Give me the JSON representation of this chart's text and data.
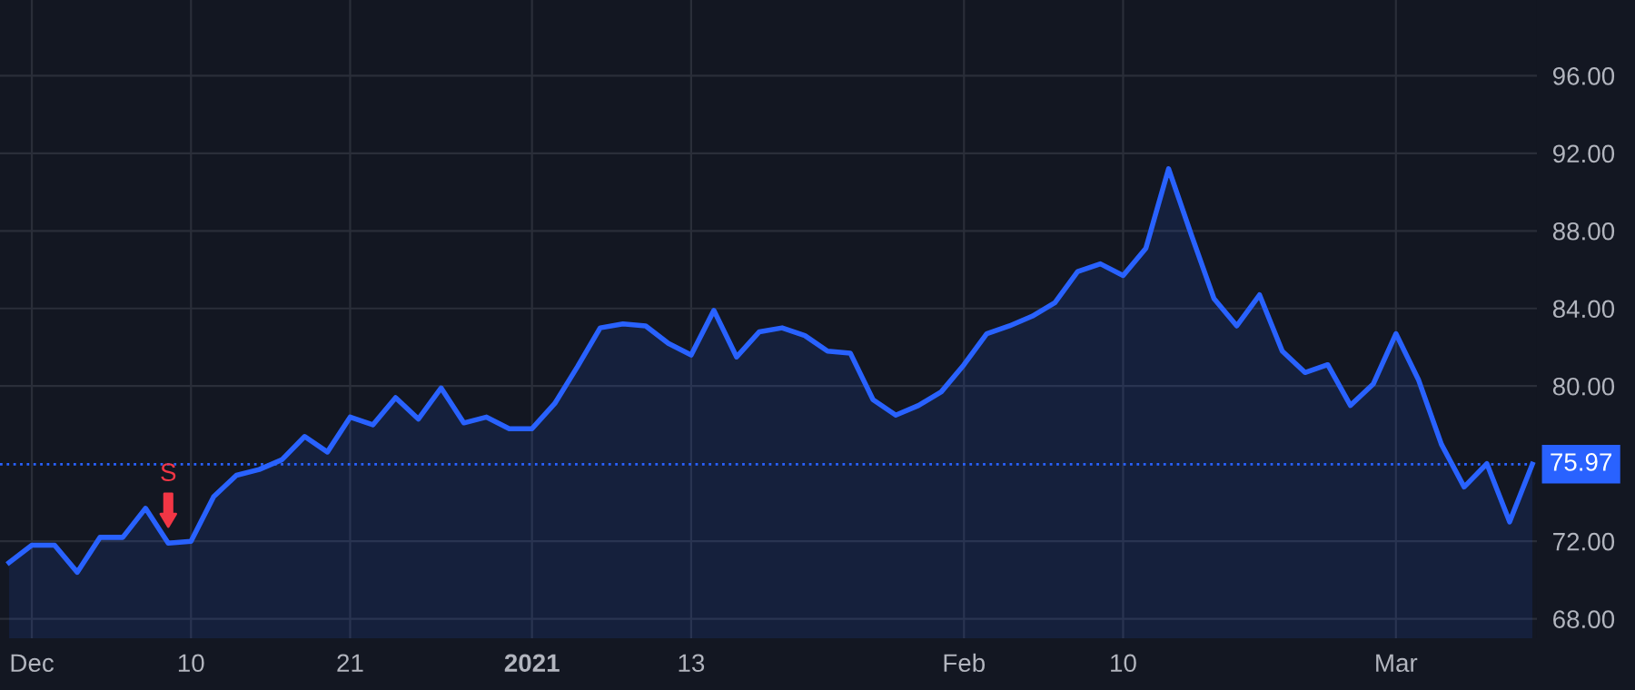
{
  "chart_data": {
    "type": "area",
    "categories": [
      null,
      "Dec",
      null,
      null,
      null,
      null,
      null,
      null,
      "10",
      null,
      null,
      null,
      null,
      null,
      null,
      "21",
      null,
      null,
      null,
      null,
      null,
      null,
      null,
      "2021",
      null,
      null,
      null,
      null,
      null,
      null,
      "13",
      null,
      null,
      null,
      null,
      null,
      null,
      null,
      null,
      null,
      null,
      null,
      "Feb",
      null,
      null,
      null,
      null,
      null,
      null,
      "10",
      null,
      null,
      null,
      null,
      null,
      null,
      null,
      null,
      null,
      null,
      null,
      "Mar",
      null,
      null,
      null,
      null,
      null,
      null
    ],
    "series": [
      {
        "color": "#2962ff",
        "values": [
          70.9,
          71.8,
          71.8,
          70.4,
          72.2,
          72.2,
          73.7,
          71.9,
          72.0,
          74.3,
          75.4,
          75.7,
          76.2,
          77.4,
          76.6,
          78.4,
          78.0,
          79.4,
          78.3,
          79.9,
          78.1,
          78.4,
          77.8,
          77.8,
          79.1,
          81.0,
          83.0,
          83.2,
          83.1,
          82.2,
          81.6,
          83.9,
          81.5,
          82.8,
          83.0,
          82.6,
          81.8,
          81.7,
          79.3,
          78.5,
          79.0,
          79.7,
          81.1,
          82.7,
          83.1,
          83.6,
          84.3,
          85.9,
          86.3,
          85.7,
          87.1,
          91.2,
          87.8,
          84.5,
          83.1,
          84.7,
          81.8,
          80.7,
          81.1,
          79.0,
          80.1,
          82.7,
          80.3,
          77.0,
          74.8,
          76.0,
          73.0,
          75.97
        ]
      }
    ],
    "ylim": [
      67,
      99.9
    ],
    "yticks": [
      {
        "value": 68,
        "label": "68.00"
      },
      {
        "value": 72,
        "label": "72.00"
      },
      {
        "value": 80,
        "label": "80.00"
      },
      {
        "value": 84,
        "label": "84.00"
      },
      {
        "value": 88,
        "label": "88.00"
      },
      {
        "value": 92,
        "label": "92.00"
      },
      {
        "value": 96,
        "label": "96.00"
      }
    ],
    "ref_lines": [
      {
        "axis": "y",
        "value": 75.97,
        "label": "75.97",
        "color": "#2962ff",
        "line_style": "dotted"
      }
    ],
    "annotations": [
      "S"
    ],
    "grid": true
  }
}
